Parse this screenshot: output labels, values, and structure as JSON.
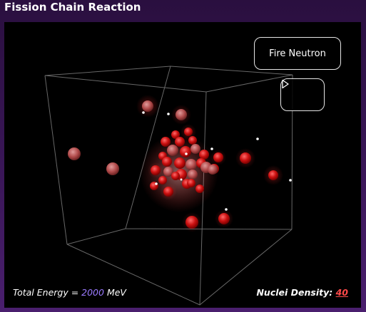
{
  "app": {
    "title": "Fission Chain Reaction"
  },
  "controls": {
    "fire_label": "Fire Neutron",
    "play_icon": "play-icon"
  },
  "hud": {
    "energy_prefix": "Total Energy = ",
    "energy_value": "2000",
    "energy_unit": " MeV",
    "density_label": "Nuclei Density: ",
    "density_value": "40"
  },
  "colors": {
    "nucleus": "#cc1111",
    "neutron": "#ffffff",
    "energy_accent": "#9b7bff",
    "density_accent": "#ff4a4a"
  }
}
